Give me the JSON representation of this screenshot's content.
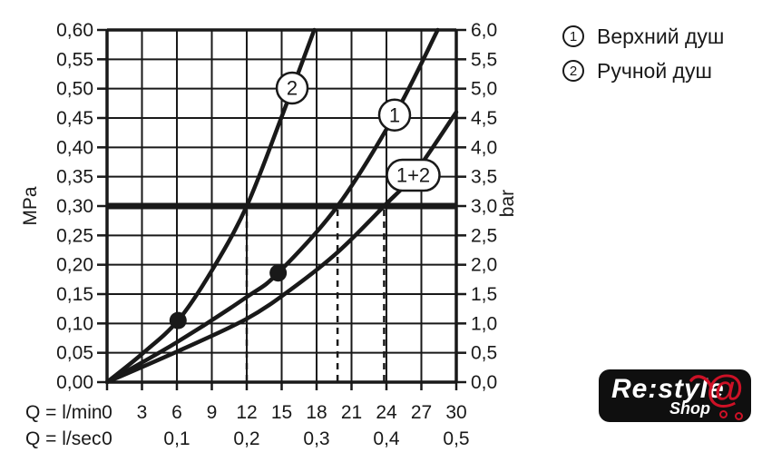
{
  "legend": {
    "items": [
      {
        "number": "1",
        "label": "Верхний душ"
      },
      {
        "number": "2",
        "label": "Ручной душ"
      }
    ]
  },
  "logo": {
    "brand": "Re:style",
    "sub": "Shop",
    "at": "@",
    "accent": "#cd1126",
    "background": "#0f0f0f"
  },
  "chart_data": {
    "type": "line",
    "title": "",
    "grid": true,
    "ink_color": "#191919",
    "x": {
      "min": 0,
      "max": 30,
      "primary_label": "Q = l/min",
      "secondary_label": "Q = l/sec",
      "primary_ticks": [
        {
          "v": 0,
          "t": "0"
        },
        {
          "v": 3,
          "t": "3"
        },
        {
          "v": 6,
          "t": "6"
        },
        {
          "v": 9,
          "t": "9"
        },
        {
          "v": 12,
          "t": "12"
        },
        {
          "v": 15,
          "t": "15"
        },
        {
          "v": 18,
          "t": "18"
        },
        {
          "v": 21,
          "t": "21"
        },
        {
          "v": 24,
          "t": "24"
        },
        {
          "v": 27,
          "t": "27"
        },
        {
          "v": 30,
          "t": "30"
        }
      ],
      "secondary_ticks": [
        {
          "v": 0,
          "t": "0"
        },
        {
          "v": 6,
          "t": "0,1"
        },
        {
          "v": 12,
          "t": "0,2"
        },
        {
          "v": 18,
          "t": "0,3"
        },
        {
          "v": 24,
          "t": "0,4"
        },
        {
          "v": 30,
          "t": "0,5"
        }
      ]
    },
    "y_left": {
      "label": "MPa",
      "min": 0,
      "max": 0.6,
      "ticks": [
        {
          "v": 0.6,
          "t": "0,60"
        },
        {
          "v": 0.55,
          "t": "0,55"
        },
        {
          "v": 0.5,
          "t": "0,50"
        },
        {
          "v": 0.45,
          "t": "0,45"
        },
        {
          "v": 0.4,
          "t": "0,40"
        },
        {
          "v": 0.35,
          "t": "0,35"
        },
        {
          "v": 0.3,
          "t": "0,30"
        },
        {
          "v": 0.25,
          "t": "0,25"
        },
        {
          "v": 0.2,
          "t": "0,20"
        },
        {
          "v": 0.15,
          "t": "0,15"
        },
        {
          "v": 0.1,
          "t": "0,10"
        },
        {
          "v": 0.05,
          "t": "0,05"
        },
        {
          "v": 0.0,
          "t": "0,00"
        }
      ]
    },
    "y_right": {
      "label": "bar",
      "ticks": [
        {
          "v": 6.0,
          "t": "6,0"
        },
        {
          "v": 5.5,
          "t": "5,5"
        },
        {
          "v": 5.0,
          "t": "5,0"
        },
        {
          "v": 4.5,
          "t": "4,5"
        },
        {
          "v": 4.0,
          "t": "4,0"
        },
        {
          "v": 3.5,
          "t": "3,5"
        },
        {
          "v": 3.0,
          "t": "3,0"
        },
        {
          "v": 2.5,
          "t": "2,5"
        },
        {
          "v": 2.0,
          "t": "2,0"
        },
        {
          "v": 1.5,
          "t": "1,5"
        },
        {
          "v": 1.0,
          "t": "1,0"
        },
        {
          "v": 0.5,
          "t": "0,5"
        },
        {
          "v": 0.0,
          "t": "0,0"
        }
      ]
    },
    "reference_line": {
      "mpa": 0.3,
      "bar": 3.0
    },
    "dashed_guides_lmin": [
      12,
      19.8,
      23.8
    ],
    "series": [
      {
        "id": "2",
        "name": "Ручной душ",
        "badge": "2",
        "badge_shape": "circle",
        "badge_at": {
          "x": 15.9,
          "mpa": 0.501
        },
        "marker": {
          "lmin": 6.1,
          "mpa": 0.105
        },
        "flow_at_3bar_lmin": 12,
        "points": [
          [
            0,
            0
          ],
          [
            3,
            0.048
          ],
          [
            6.1,
            0.105
          ],
          [
            9,
            0.19
          ],
          [
            12,
            0.3
          ],
          [
            15,
            0.452
          ],
          [
            17.8,
            0.6
          ]
        ]
      },
      {
        "id": "1",
        "name": "Верхний душ",
        "badge": "1",
        "badge_shape": "circle",
        "badge_at": {
          "x": 24.7,
          "mpa": 0.455
        },
        "marker": {
          "lmin": 14.7,
          "mpa": 0.186
        },
        "flow_at_3bar_lmin": 19.8,
        "points": [
          [
            0,
            0
          ],
          [
            6,
            0.068
          ],
          [
            12,
            0.145
          ],
          [
            14.7,
            0.186
          ],
          [
            19.8,
            0.3
          ],
          [
            24.7,
            0.455
          ],
          [
            28.4,
            0.6
          ]
        ]
      },
      {
        "id": "1+2",
        "name": "Верхний душ + Ручной душ",
        "badge": "1+2",
        "badge_shape": "pill",
        "badge_at": {
          "x": 26.3,
          "mpa": 0.3525
        },
        "flow_at_3bar_lmin": 23.8,
        "points": [
          [
            0,
            0
          ],
          [
            6,
            0.052
          ],
          [
            12,
            0.108
          ],
          [
            16,
            0.161
          ],
          [
            19.9,
            0.223
          ],
          [
            23.8,
            0.3
          ],
          [
            26.3,
            0.3525
          ],
          [
            30,
            0.46
          ]
        ]
      }
    ]
  }
}
